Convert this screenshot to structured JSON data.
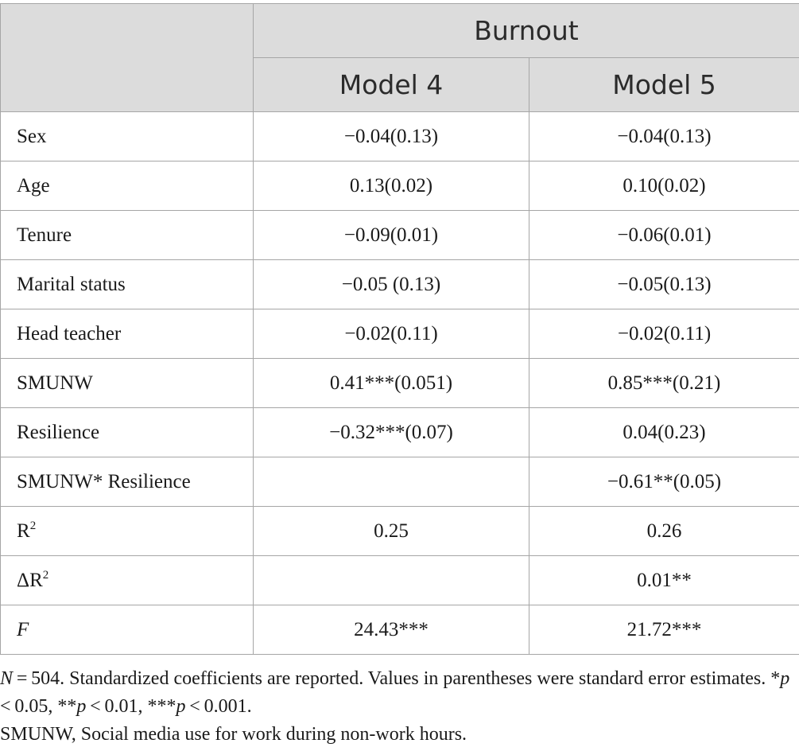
{
  "header": {
    "group_label": "Burnout",
    "columns": [
      "Model 4",
      "Model 5"
    ]
  },
  "rows": [
    {
      "label": "Sex",
      "m4": "−0.04(0.13)",
      "m5": "−0.04(0.13)"
    },
    {
      "label": "Age",
      "m4": "0.13(0.02)",
      "m5": "0.10(0.02)"
    },
    {
      "label": "Tenure",
      "m4": "−0.09(0.01)",
      "m5": "−0.06(0.01)"
    },
    {
      "label": "Marital status",
      "m4": "−0.05 (0.13)",
      "m5": "−0.05(0.13)"
    },
    {
      "label": "Head teacher",
      "m4": "−0.02(0.11)",
      "m5": "−0.02(0.11)"
    },
    {
      "label": "SMUNW",
      "m4": "0.41***(0.051)",
      "m5": "0.85***(0.21)"
    },
    {
      "label": "Resilience",
      "m4": "−0.32***(0.07)",
      "m5": "0.04(0.23)"
    },
    {
      "label": "SMUNW* Resilience",
      "m4": "",
      "m5": "−0.61**(0.05)"
    },
    {
      "label": "R",
      "sup": "2",
      "m4": "0.25",
      "m5": "0.26"
    },
    {
      "label": "ΔR",
      "sup": "2",
      "m4": "",
      "m5": "0.01**"
    },
    {
      "label": "F",
      "m4": "24.43***",
      "m5": "21.72***"
    }
  ],
  "notes": {
    "n_label": "N",
    "n_text": " = 504. Standardized coefficients are reported. Values in parentheses were standard error estimates. *",
    "p1": "p",
    "t1": " < 0.05, **",
    "p2": "p",
    "t2": " < 0.01, ***",
    "p3": "p",
    "t3": " < 0.001.",
    "abbrev": "SMUNW, Social media use for work during non-work hours."
  }
}
